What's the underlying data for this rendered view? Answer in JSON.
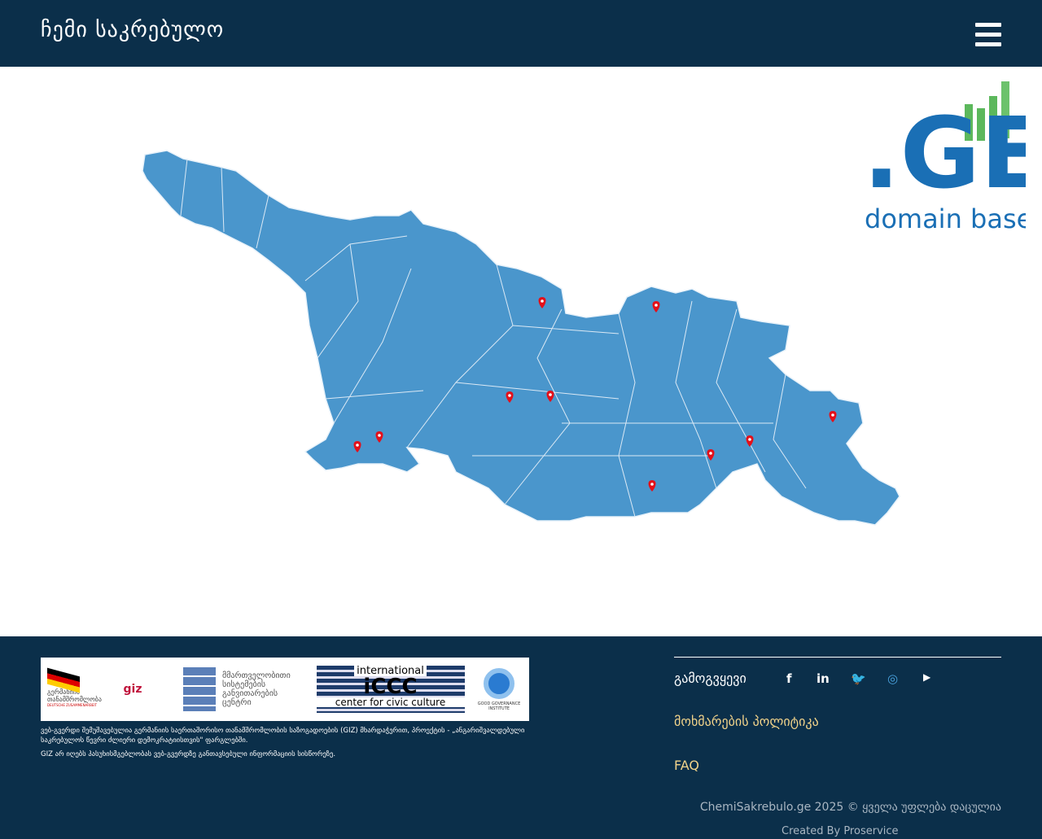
{
  "header": {
    "title": "ჩემი საკრებულო",
    "menu_icon": "hamburger-icon"
  },
  "map": {
    "fill": "#4a96cc",
    "pin_color": "#e3101a",
    "pins": 10
  },
  "footer": {
    "logos": [
      {
        "name": "გერმანიის თანამშრომლობა",
        "sub": "DEUTSCHE ZUSAMMENARBEIT"
      },
      {
        "name": "giz"
      },
      {
        "name": "მმართველობითი სისტემების განვითარების ცენტრი"
      },
      {
        "name": "international",
        "big": "iCCC",
        "sub": "center for civic culture"
      },
      {
        "name": "GOOD GOVERNANCE INSTITUTE"
      }
    ],
    "text1": "ვებ-გვერდი შემუშავებულია გერმანიის საერთაშორისო თანამშრომლობის საზოგადოების (GIZ) მხარდაჭერით, პროექტის - „ანგარიშვალდებული საკრებულოს წევრი ძლიერი დემოკრატიისთვის\" ფარგლებში.",
    "text2": "GIZ არ იღებს პასუხისმგებლობას ვებ-გვერდზე განთავსებული ინფორმაციის სისწორეზე.",
    "follow": "გამოგვყევი",
    "policy": "მოხმარების პოლიტიკა",
    "faq": "FAQ",
    "copyright": "ChemiSakrebulo.ge 2025 © ყველა უფლება დაცულია",
    "created": "Created By Proservice",
    "social": {
      "facebook": "f",
      "linkedin": "in",
      "twitter": "🐦",
      "instagram": "◎",
      "youtube": "▶"
    }
  },
  "watermark": {
    "big": ".GE",
    "sub": "domain base"
  }
}
